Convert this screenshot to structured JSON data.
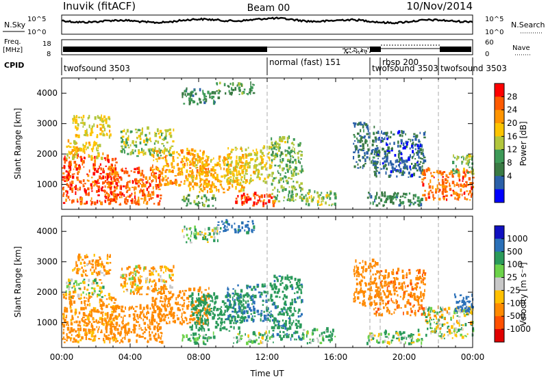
{
  "header": {
    "station": "Inuvik",
    "mode": "(fitACF)",
    "beam": "Beam 00",
    "date": "10/Nov/2014"
  },
  "sky_panel": {
    "left_label": "N.Sky",
    "right_label": "N.Search",
    "tick_top": "10^5",
    "tick_bottom": "10^0"
  },
  "freq_panel": {
    "left_label_1": "Freq.",
    "left_label_2": "[MHz]",
    "left_ticks": [
      "18",
      "8"
    ],
    "right_label": "Nave",
    "right_ticks": [
      "60",
      "0"
    ]
  },
  "cpid_panel": {
    "label": "CPID",
    "programs": [
      {
        "name": "twofsound 3503",
        "start": 0.0,
        "end": 12.0
      },
      {
        "name": "normal (fast) 151",
        "start": 12.0,
        "end": 18.0
      },
      {
        "name": "twofsound 3503",
        "start": 18.0,
        "end": 18.6
      },
      {
        "name": "rbsp 200",
        "start": 18.6,
        "end": 22.0
      },
      {
        "name": "twofsound 3503",
        "start": 22.0,
        "end": 24.0
      }
    ]
  },
  "power_colorbar": {
    "label": "Power [dB]",
    "ticks": [
      "28",
      "24",
      "20",
      "16",
      "12",
      "8",
      "4"
    ],
    "colors": [
      "#ff0000",
      "#ff5a00",
      "#ff9400",
      "#fcc400",
      "#b2c63c",
      "#3e9a58",
      "#3a7a44",
      "#2b60a8",
      "#0000ff"
    ]
  },
  "velocity_colorbar": {
    "label": "Velocity [m s⁻¹]",
    "ticks": [
      "1000",
      "500",
      "100",
      "25",
      "-25",
      "-100",
      "-500",
      "-1000"
    ],
    "colors": [
      "#1010c0",
      "#2a70b8",
      "#2a9a5a",
      "#6cd24a",
      "#c8c8c8",
      "#ffc000",
      "#ff8a00",
      "#ff5000",
      "#e00000"
    ]
  },
  "chart_data": {
    "type": "heatmap",
    "xlabel": "Time UT",
    "ylabel": "Slant Range [km]",
    "x_ticks": [
      "00:00",
      "04:00",
      "08:00",
      "12:00",
      "16:00",
      "20:00",
      "00:00"
    ],
    "xlim": [
      0,
      24
    ],
    "ylim": [
      180,
      4500
    ],
    "y_ticks": [
      1000,
      2000,
      3000,
      4000
    ],
    "program_change_hours": [
      12.0,
      18.0,
      18.6,
      22.0
    ],
    "echo_regions": [
      {
        "t0": 0.0,
        "t1": 3.2,
        "r0": 300,
        "r1": 1900,
        "power": 27,
        "velocity": -200
      },
      {
        "t0": 0.2,
        "t1": 2.4,
        "r0": 1800,
        "r1": 2400,
        "power": 18,
        "velocity": 25
      },
      {
        "t0": 0.6,
        "t1": 2.8,
        "r0": 2500,
        "r1": 3200,
        "power": 17,
        "velocity": -150
      },
      {
        "t0": 2.5,
        "t1": 5.8,
        "r0": 300,
        "r1": 1500,
        "power": 26,
        "velocity": -250
      },
      {
        "t0": 3.4,
        "t1": 6.5,
        "r0": 1900,
        "r1": 2800,
        "power": 15,
        "velocity": -100
      },
      {
        "t0": 5.2,
        "t1": 8.6,
        "r0": 900,
        "r1": 2100,
        "power": 22,
        "velocity": -300
      },
      {
        "t0": 7.4,
        "t1": 10.6,
        "r0": 700,
        "r1": 1900,
        "power": 20,
        "velocity": 300
      },
      {
        "t0": 9.6,
        "t1": 12.2,
        "r0": 1000,
        "r1": 2200,
        "power": 17,
        "velocity": 500
      },
      {
        "t0": 10.0,
        "t1": 12.4,
        "r0": 250,
        "r1": 650,
        "power": 27,
        "velocity": 60
      },
      {
        "t0": 7.0,
        "t1": 9.0,
        "r0": 250,
        "r1": 600,
        "power": 12,
        "velocity": 150
      },
      {
        "t0": 12.2,
        "t1": 14.0,
        "r0": 400,
        "r1": 2500,
        "power": 13,
        "velocity": 400
      },
      {
        "t0": 14.0,
        "t1": 16.0,
        "r0": 280,
        "r1": 750,
        "power": 14,
        "velocity": 120
      },
      {
        "t0": 9.0,
        "t1": 11.2,
        "r0": 3900,
        "r1": 4300,
        "power": 10,
        "velocity": 600
      },
      {
        "t0": 7.0,
        "t1": 9.2,
        "r0": 3600,
        "r1": 4100,
        "power": 9,
        "velocity": 80
      },
      {
        "t0": 17.0,
        "t1": 18.4,
        "r0": 1500,
        "r1": 3000,
        "power": 6,
        "velocity": -300
      },
      {
        "t0": 18.2,
        "t1": 21.2,
        "r0": 1200,
        "r1": 2700,
        "power": 5,
        "velocity": -400
      },
      {
        "t0": 17.8,
        "t1": 21.0,
        "r0": 250,
        "r1": 700,
        "power": 9,
        "velocity": 80
      },
      {
        "t0": 21.0,
        "t1": 24.0,
        "r0": 450,
        "r1": 1450,
        "power": 25,
        "velocity": 40
      },
      {
        "t0": 22.8,
        "t1": 24.0,
        "r0": 1300,
        "r1": 1900,
        "power": 14,
        "velocity": 700
      }
    ]
  }
}
